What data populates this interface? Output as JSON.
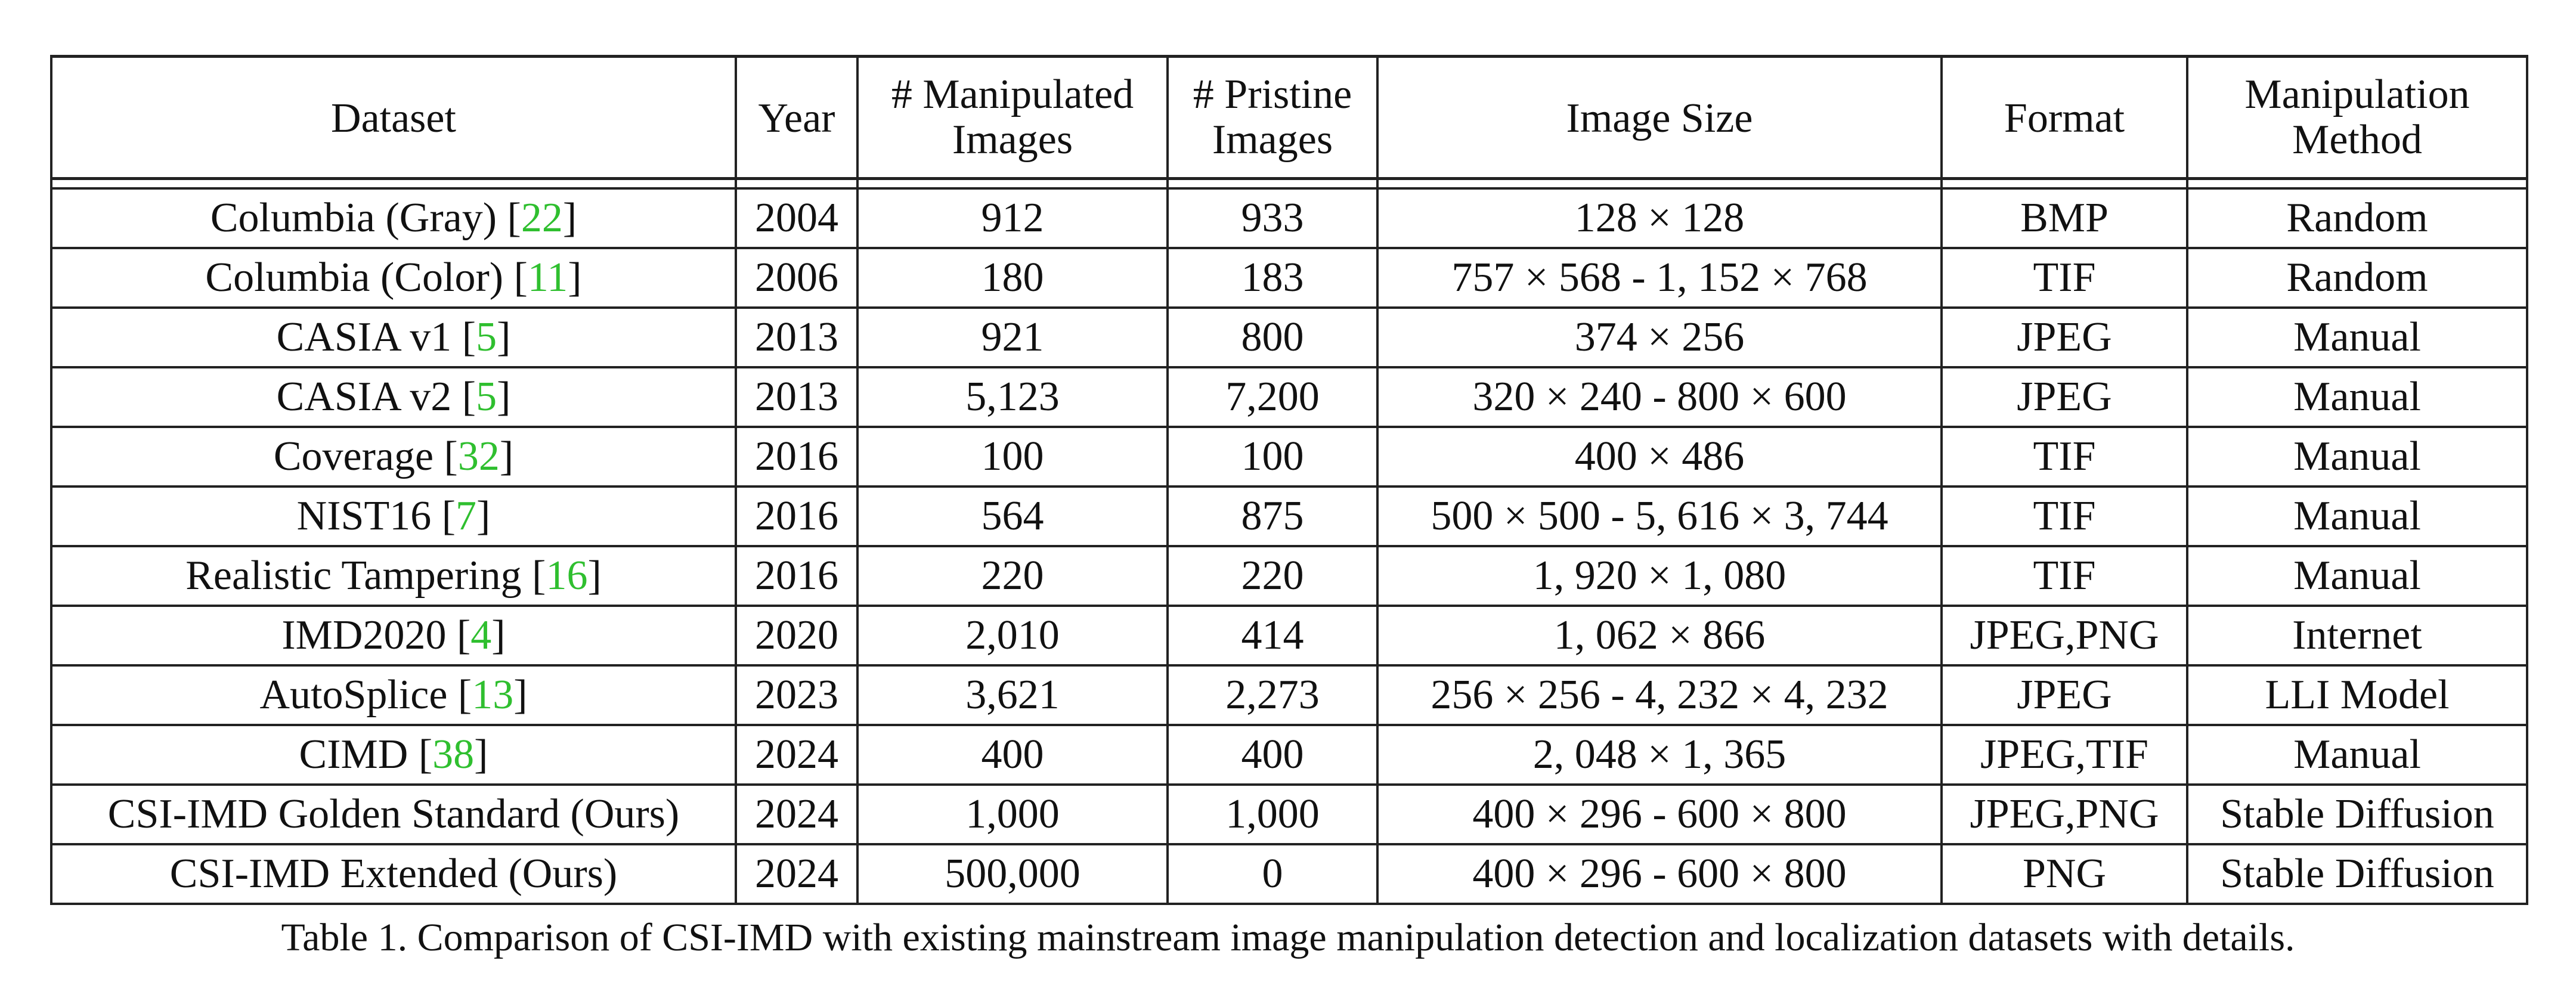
{
  "columns": [
    {
      "line1": "Dataset",
      "line2": ""
    },
    {
      "line1": "Year",
      "line2": ""
    },
    {
      "line1": "# Manipulated",
      "line2": "Images"
    },
    {
      "line1": "# Pristine",
      "line2": "Images"
    },
    {
      "line1": "Image Size",
      "line2": ""
    },
    {
      "line1": "Format",
      "line2": ""
    },
    {
      "line1": "Manipulation",
      "line2": "Method"
    }
  ],
  "rows": [
    {
      "dataset": "Columbia (Gray) [",
      "cite": "22",
      "dataset_end": "]",
      "year": "2004",
      "manipulated": "912",
      "pristine": "933",
      "size": "128 × 128",
      "format": "BMP",
      "method": "Random"
    },
    {
      "dataset": "Columbia (Color) [",
      "cite": "11",
      "dataset_end": "]",
      "year": "2006",
      "manipulated": "180",
      "pristine": "183",
      "size": "757 × 568 - 1, 152 × 768",
      "format": "TIF",
      "method": "Random"
    },
    {
      "dataset": "CASIA v1 [",
      "cite": "5",
      "dataset_end": "]",
      "year": "2013",
      "manipulated": "921",
      "pristine": "800",
      "size": "374 × 256",
      "format": "JPEG",
      "method": "Manual"
    },
    {
      "dataset": "CASIA v2 [",
      "cite": "5",
      "dataset_end": "]",
      "year": "2013",
      "manipulated": "5,123",
      "pristine": "7,200",
      "size": "320 × 240 - 800 × 600",
      "format": "JPEG",
      "method": "Manual"
    },
    {
      "dataset": "Coverage [",
      "cite": "32",
      "dataset_end": "]",
      "year": "2016",
      "manipulated": "100",
      "pristine": "100",
      "size": "400 × 486",
      "format": "TIF",
      "method": "Manual"
    },
    {
      "dataset": "NIST16 [",
      "cite": "7",
      "dataset_end": "]",
      "year": "2016",
      "manipulated": "564",
      "pristine": "875",
      "size": "500 × 500 - 5, 616 × 3, 744",
      "format": "TIF",
      "method": "Manual"
    },
    {
      "dataset": "Realistic Tampering [",
      "cite": "16",
      "dataset_end": "]",
      "year": "2016",
      "manipulated": "220",
      "pristine": "220",
      "size": "1, 920 × 1, 080",
      "format": "TIF",
      "method": "Manual"
    },
    {
      "dataset": "IMD2020 [",
      "cite": "4",
      "dataset_end": "]",
      "year": "2020",
      "manipulated": "2,010",
      "pristine": "414",
      "size": "1, 062 × 866",
      "format": "JPEG,PNG",
      "method": "Internet"
    },
    {
      "dataset": "AutoSplice [",
      "cite": "13",
      "dataset_end": "]",
      "year": "2023",
      "manipulated": "3,621",
      "pristine": "2,273",
      "size": "256 × 256 - 4, 232 × 4, 232",
      "format": "JPEG",
      "method": "LLI Model"
    },
    {
      "dataset": "CIMD [",
      "cite": "38",
      "dataset_end": "]",
      "year": "2024",
      "manipulated": "400",
      "pristine": "400",
      "size": "2, 048 × 1, 365",
      "format": "JPEG,TIF",
      "method": "Manual"
    },
    {
      "dataset": "CSI-IMD Golden Standard (Ours)",
      "cite": "",
      "dataset_end": "",
      "year": "2024",
      "manipulated": "1,000",
      "pristine": "1,000",
      "size": "400 × 296 - 600 × 800",
      "format": "JPEG,PNG",
      "method": "Stable Diffusion"
    },
    {
      "dataset": "CSI-IMD Extended (Ours)",
      "cite": "",
      "dataset_end": "",
      "year": "2024",
      "manipulated": "500,000",
      "pristine": "0",
      "size": "400 × 296 - 600 × 800",
      "format": "PNG",
      "method": "Stable Diffusion"
    }
  ],
  "caption": "Table 1. Comparison of CSI-IMD with existing mainstream image manipulation detection and localization datasets with details.",
  "colors": {
    "citation": "#2fbf2f",
    "border": "#222222"
  }
}
